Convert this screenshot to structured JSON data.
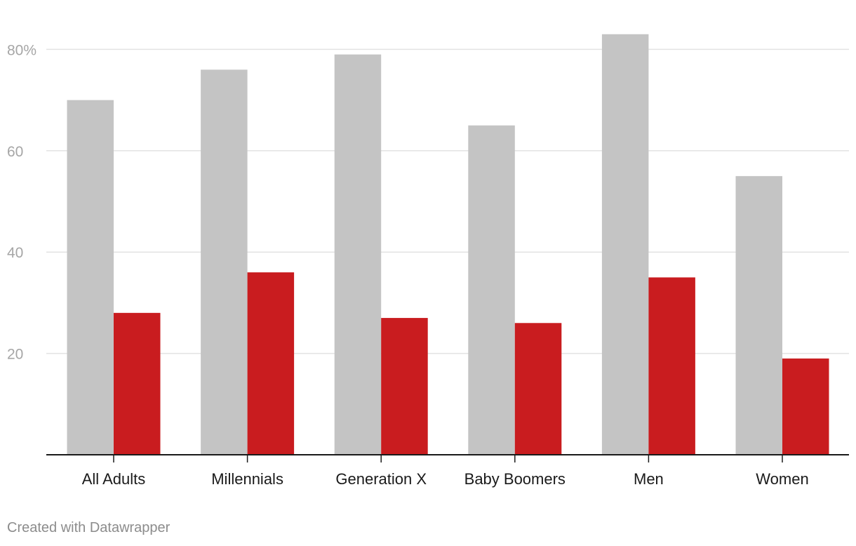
{
  "chart_data": {
    "type": "bar",
    "categories": [
      "All Adults",
      "Millennials",
      "Generation X",
      "Baby Boomers",
      "Men",
      "Women"
    ],
    "series": [
      {
        "values": [
          70,
          76,
          79,
          65,
          83,
          55
        ],
        "color": "#c4c4c4"
      },
      {
        "values": [
          28,
          36,
          27,
          26,
          35,
          19
        ],
        "color": "#c91c1f"
      }
    ],
    "yticks": [
      {
        "value": 20,
        "label": "20"
      },
      {
        "value": 40,
        "label": "40"
      },
      {
        "value": 60,
        "label": "60"
      },
      {
        "value": 80,
        "label": "80%"
      }
    ],
    "ylim": [
      0,
      89
    ],
    "grid": true,
    "title": "",
    "xlabel": "",
    "ylabel": ""
  },
  "footer": {
    "credit": "Created with Datawrapper"
  },
  "colors": {
    "gridline": "#e3e3e3",
    "axis": "#1a1a1a"
  }
}
